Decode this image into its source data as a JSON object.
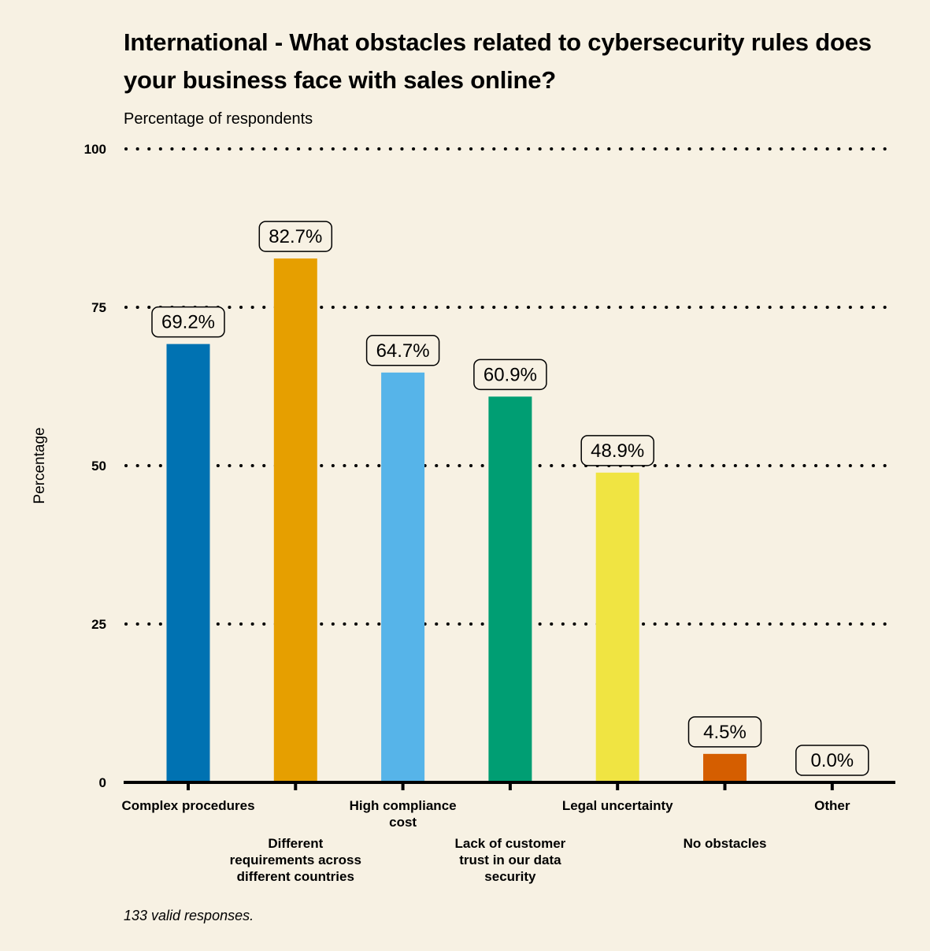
{
  "chart_data": {
    "type": "bar",
    "title": "International - What obstacles related to cybersecurity rules does your business face with sales online?",
    "subtitle": "Percentage of respondents",
    "ylabel": "Percentage",
    "xlabel": "",
    "ylim": [
      0,
      100
    ],
    "yticks": [
      0,
      25,
      50,
      75,
      100
    ],
    "grid": true,
    "grid_style": "dotted",
    "categories": [
      "Complex procedures",
      "Different requirements across different countries",
      "High compliance cost",
      "Lack of customer trust in our data security",
      "Legal uncertainty",
      "No obstacles",
      "Other"
    ],
    "category_lines": [
      [
        "Complex procedures"
      ],
      [
        "Different",
        "requirements across",
        "different countries"
      ],
      [
        "High compliance",
        "cost"
      ],
      [
        "Lack of customer",
        "trust in our data",
        "security"
      ],
      [
        "Legal uncertainty"
      ],
      [
        "No obstacles"
      ],
      [
        "Other"
      ]
    ],
    "values": [
      69.2,
      82.7,
      64.7,
      60.9,
      48.9,
      4.5,
      0.0
    ],
    "data_labels": [
      "69.2%",
      "82.7%",
      "64.7%",
      "60.9%",
      "48.9%",
      "4.5%",
      "0.0%"
    ],
    "colors": [
      "#0072b2",
      "#e69f00",
      "#56b4e9",
      "#009e73",
      "#f0e442",
      "#d55e00",
      "#cc79a7"
    ]
  },
  "caption": "133 valid responses.",
  "colors": {
    "background": "#f7f1e3",
    "axis": "#000000"
  }
}
